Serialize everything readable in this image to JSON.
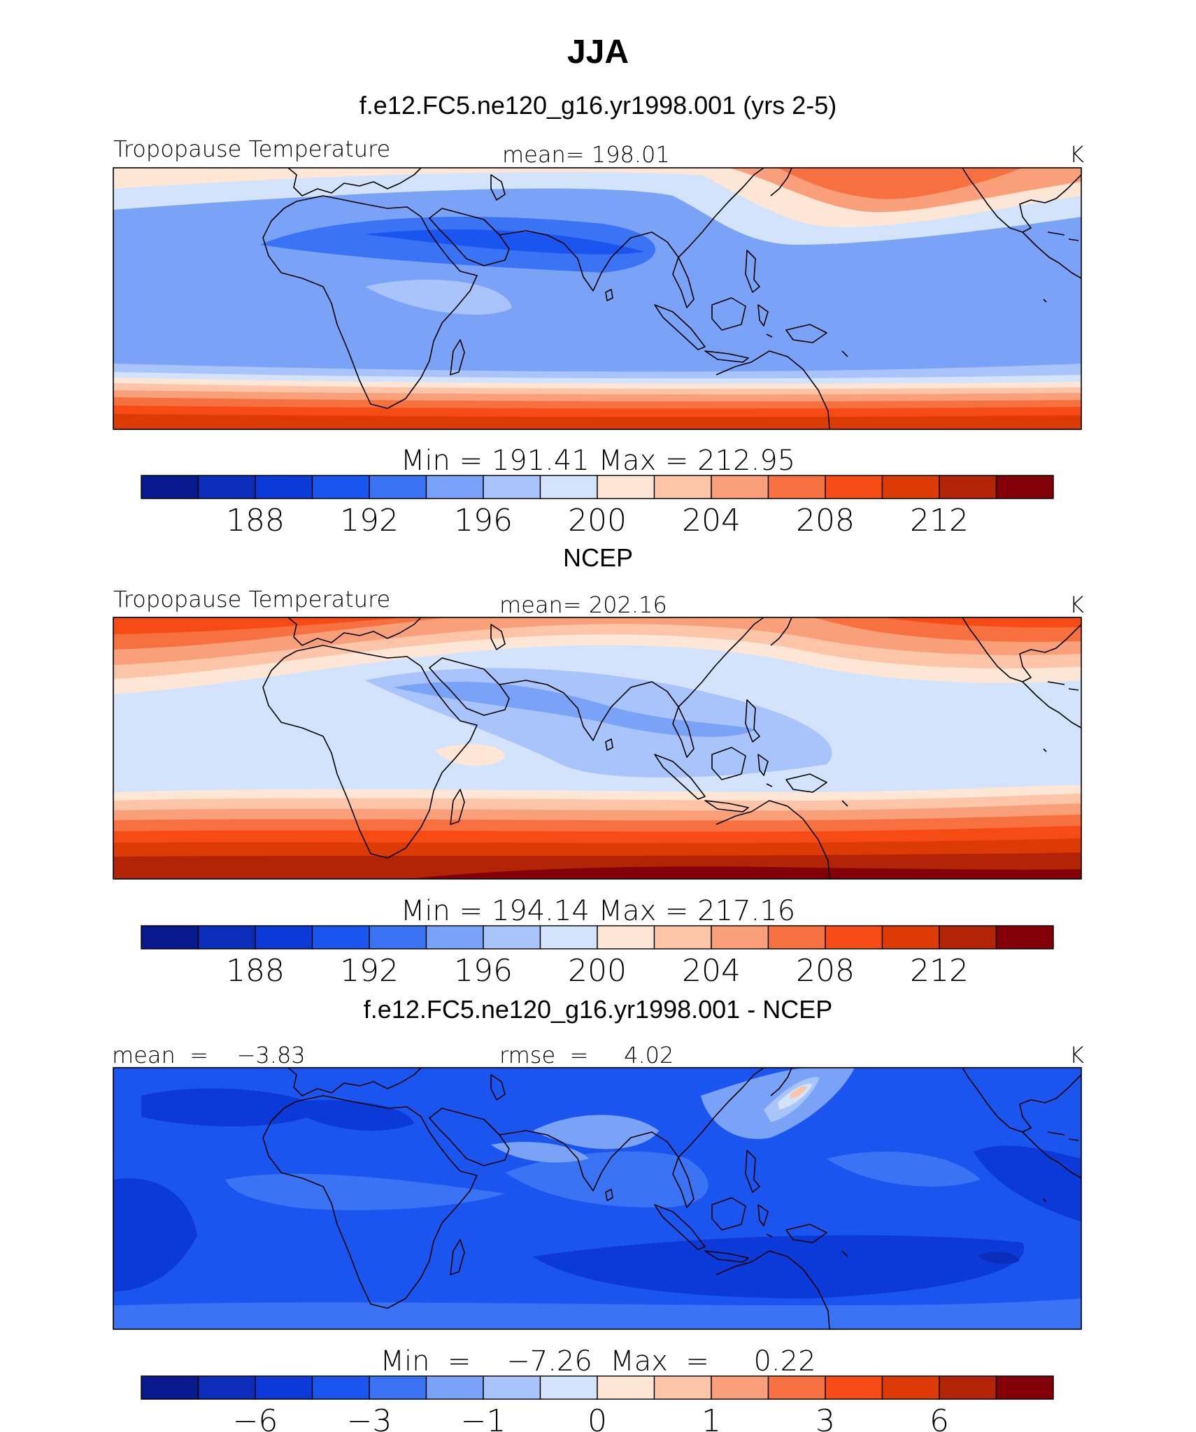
{
  "title": "JJA",
  "palette": [
    "#08198d",
    "#0a2dba",
    "#0b3ad9",
    "#1b55f0",
    "#3a73f4",
    "#7aa3f8",
    "#a9c4fa",
    "#d3e3fb",
    "#fde6d6",
    "#fcc5a8",
    "#f9a07a",
    "#f7703f",
    "#f74b15",
    "#dd3b06",
    "#b32407",
    "#830008"
  ],
  "colorbars": {
    "temperature": {
      "levels": [
        188,
        192,
        196,
        200,
        204,
        208,
        212
      ]
    },
    "difference": {
      "levels": [
        "−6",
        "−3",
        "−1",
        "0",
        "1",
        "3",
        "6"
      ]
    }
  },
  "panels": [
    {
      "heading": "f.e12.FC5.ne120_g16.yr1998.001 (yrs 2-5)",
      "left_label": "Tropopause Temperature",
      "center_label": "mean=  198.01",
      "right_label": "K",
      "minmax": "Min  =  191.41  Max  =  212.95",
      "colorbar": "temperature"
    },
    {
      "heading": "NCEP",
      "left_label": "Tropopause Temperature",
      "center_label": "mean=  202.16",
      "right_label": "K",
      "minmax": "Min  =  194.14  Max  =  217.16",
      "colorbar": "temperature"
    },
    {
      "heading": "f.e12.FC5.ne120_g16.yr1998.001 - NCEP",
      "left_label": "mean  =    −3.83",
      "center_label": "rmse  =     4.02",
      "right_label": "K",
      "minmax": "Min  =    −7.26  Max  =     0.22",
      "colorbar": "difference"
    }
  ]
}
